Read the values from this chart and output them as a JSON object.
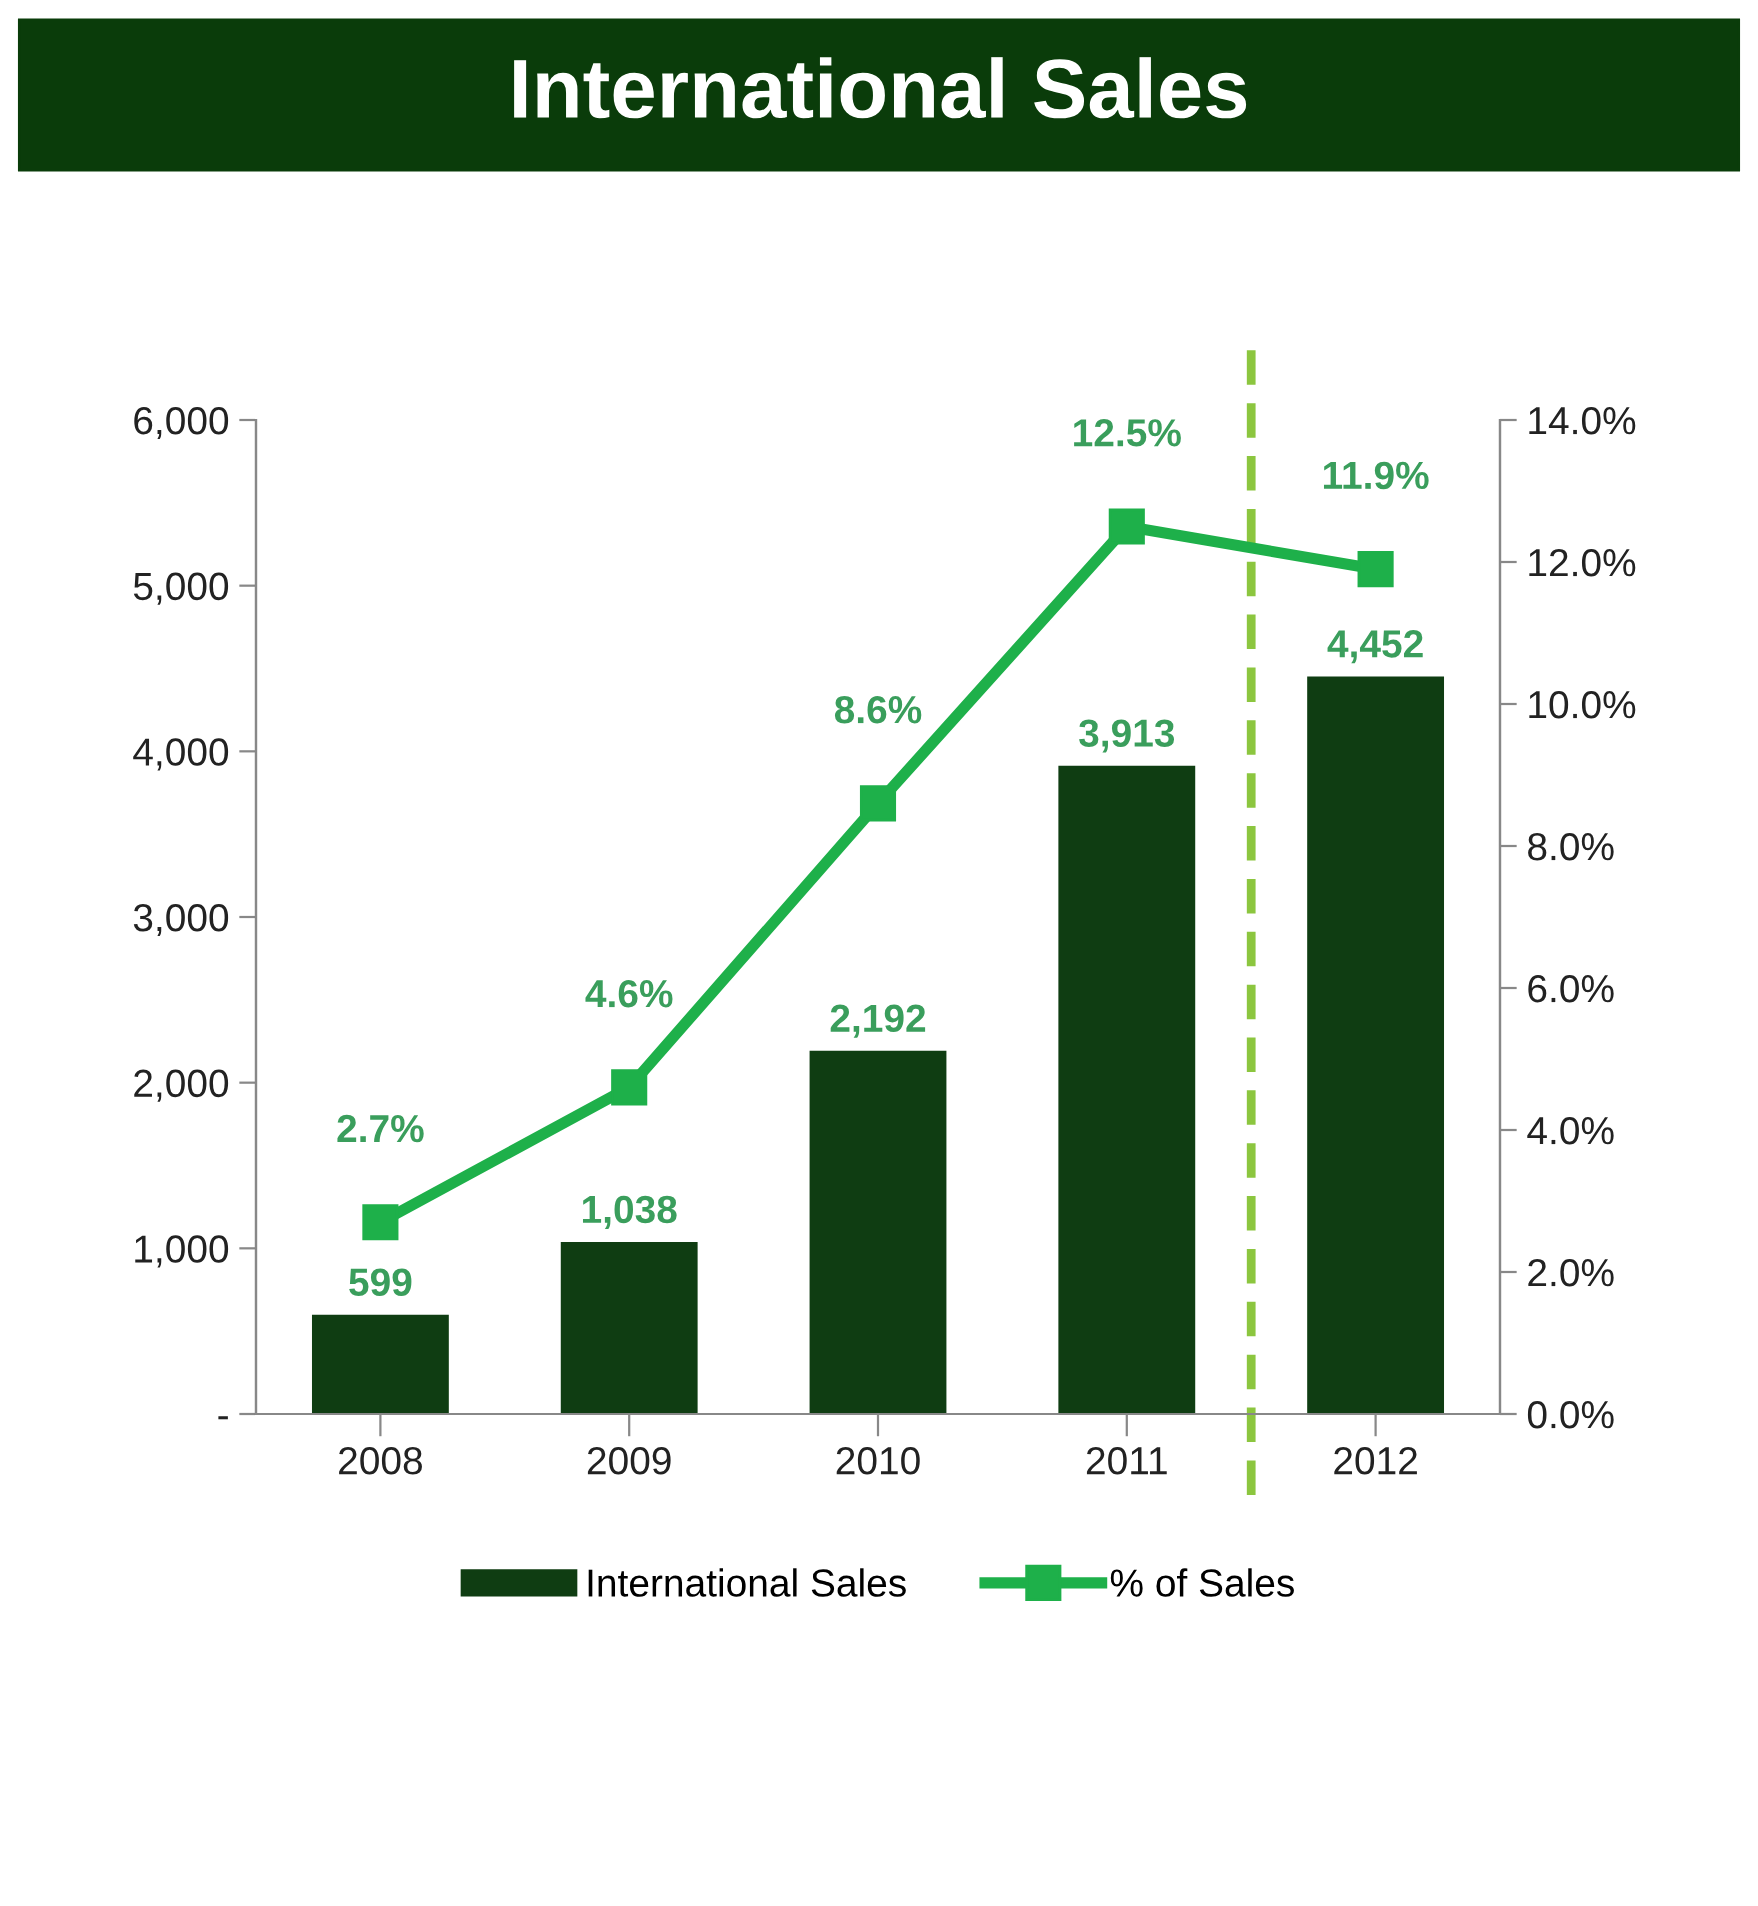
{
  "chart_data": {
    "type": "bar",
    "title": "International Sales",
    "categories": [
      "2008",
      "2009",
      "2010",
      "2011",
      "2012"
    ],
    "series": [
      {
        "name": "International Sales",
        "color": "#0f3d12",
        "values": [
          599,
          1038,
          2192,
          3913,
          4452
        ],
        "value_labels": [
          "599",
          "1,038",
          "2,192",
          "3,913",
          "4,452"
        ]
      },
      {
        "name": "% of Sales",
        "type": "line",
        "axis": "y2",
        "color": "#1eb04a",
        "marker": "square",
        "values": [
          2.7,
          4.6,
          8.6,
          12.5,
          11.9
        ],
        "value_labels": [
          "2.7%",
          "4.6%",
          "8.6%",
          "12.5%",
          "11.9%"
        ]
      }
    ],
    "ylim": [
      0,
      6000
    ],
    "yticks": [
      {
        "value": 0,
        "label": "-"
      },
      {
        "value": 1000,
        "label": "1,000"
      },
      {
        "value": 2000,
        "label": "2,000"
      },
      {
        "value": 3000,
        "label": "3,000"
      },
      {
        "value": 4000,
        "label": "4,000"
      },
      {
        "value": 5000,
        "label": "5,000"
      },
      {
        "value": 6000,
        "label": "6,000"
      }
    ],
    "y2lim": [
      0,
      14
    ],
    "y2ticks": [
      {
        "value": 0,
        "label": "0.0%"
      },
      {
        "value": 2,
        "label": "2.0%"
      },
      {
        "value": 4,
        "label": "4.0%"
      },
      {
        "value": 6,
        "label": "6.0%"
      },
      {
        "value": 8,
        "label": "8.0%"
      },
      {
        "value": 10,
        "label": "10.0%"
      },
      {
        "value": 12,
        "label": "12.0%"
      },
      {
        "value": 14,
        "label": "14.0%"
      }
    ],
    "grid": false,
    "legend": "bottom"
  }
}
